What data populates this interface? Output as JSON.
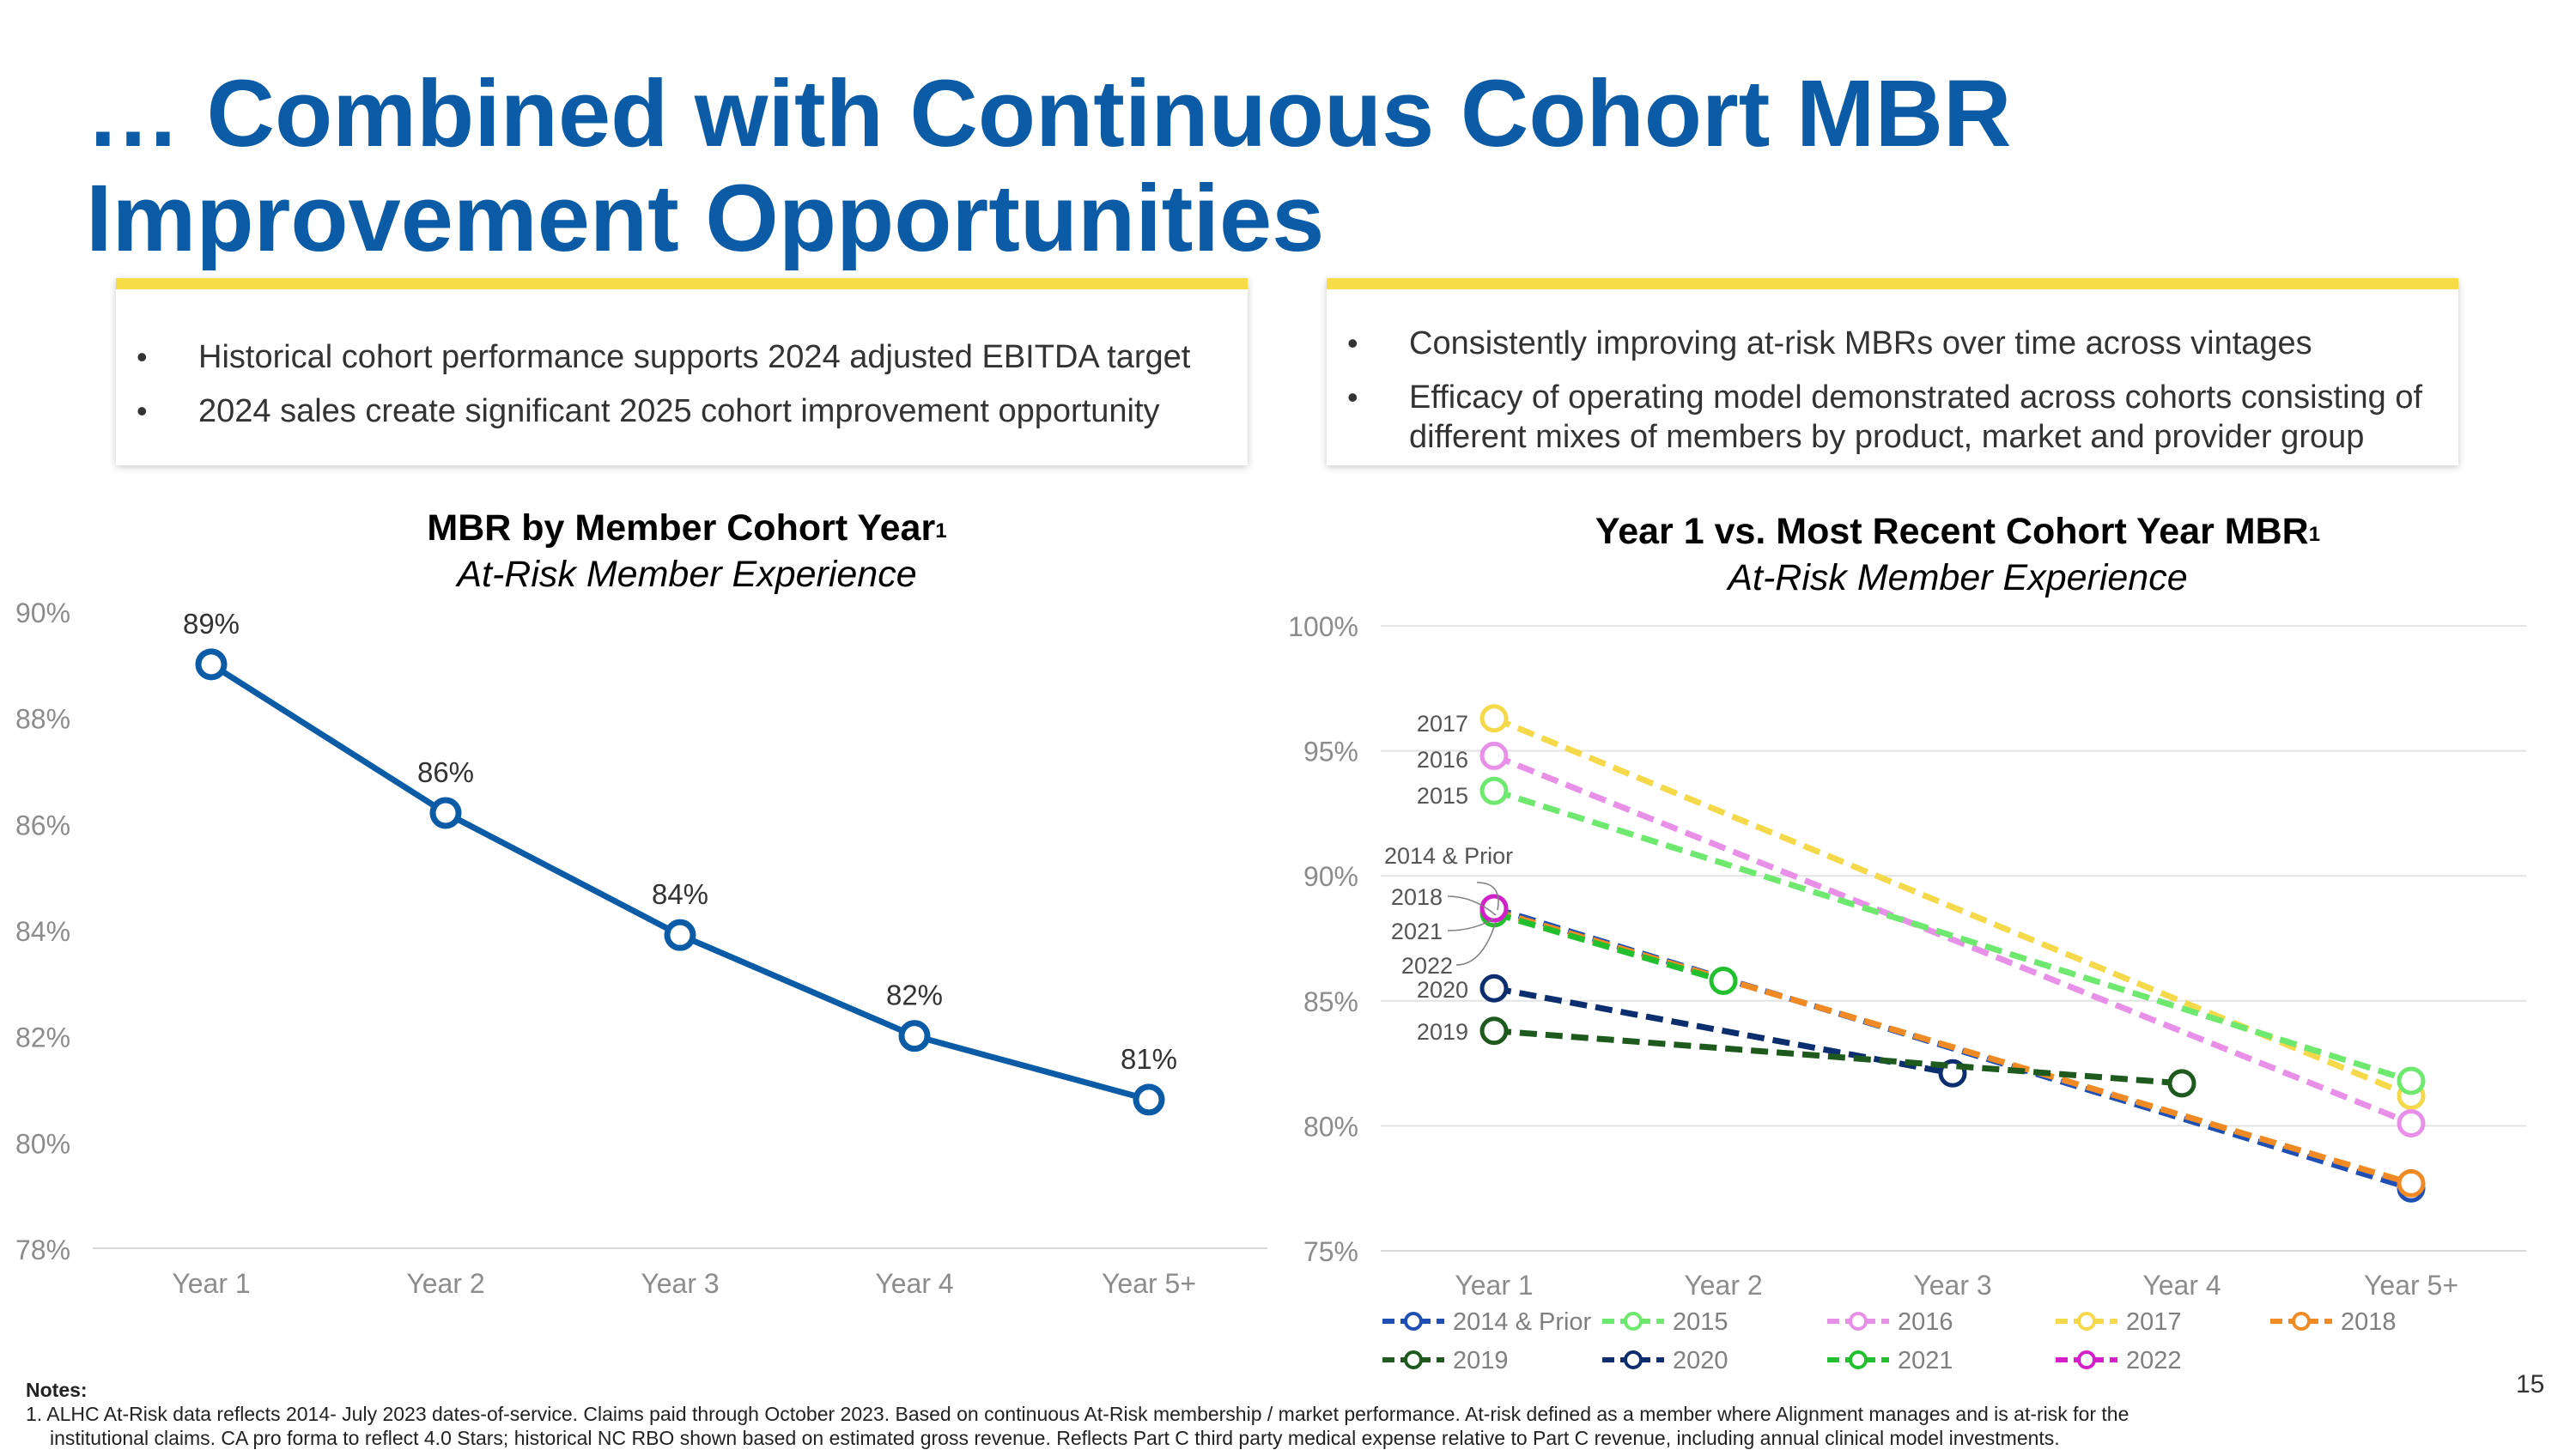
{
  "slide_title": "… Combined with Continuous Cohort MBR Improvement Opportunities",
  "left_box": {
    "bullet": "•",
    "bullets": [
      "Historical cohort performance supports 2024 adjusted EBITDA target",
      "2024 sales create significant 2025 cohort improvement opportunity"
    ]
  },
  "right_box": {
    "bullet": "•",
    "bullets": [
      "Consistently improving at-risk MBRs over time across vintages",
      "Efficacy of operating model demonstrated across cohorts consisting of different mixes of members by product, market and provider group"
    ]
  },
  "chart_data": [
    {
      "type": "line",
      "title": "MBR by Member Cohort Year",
      "title_footnote": "1",
      "subtitle": "At-Risk Member Experience",
      "categories": [
        "Year 1",
        "Year 2",
        "Year 3",
        "Year 4",
        "Year 5+"
      ],
      "series": [
        {
          "name": "MBR",
          "values": [
            89.0,
            86.2,
            83.9,
            82.0,
            80.8
          ],
          "color": "#0B5BA6"
        }
      ],
      "data_labels": [
        "89%",
        "86%",
        "84%",
        "82%",
        "81%"
      ],
      "ylim": [
        78,
        90
      ],
      "yticks": [
        78,
        80,
        82,
        84,
        86,
        88,
        90
      ],
      "ytick_labels": [
        "78%",
        "80%",
        "82%",
        "84%",
        "86%",
        "88%",
        "90%"
      ],
      "grid": false
    },
    {
      "type": "line",
      "title": "Year 1 vs. Most Recent Cohort Year MBR",
      "title_footnote": "1",
      "subtitle": "At-Risk Member Experience",
      "categories": [
        "Year 1",
        "Year 2",
        "Year 3",
        "Year 4",
        "Year 5+"
      ],
      "ylim": [
        75,
        100
      ],
      "yticks": [
        75,
        80,
        85,
        90,
        95,
        100
      ],
      "ytick_labels": [
        "75%",
        "80%",
        "85%",
        "90%",
        "95%",
        "100%"
      ],
      "grid": true,
      "legend_position": "bottom",
      "series": [
        {
          "name": "2014 & Prior",
          "color": "#1F4FB4",
          "points": [
            [
              1,
              88.7
            ],
            [
              5,
              77.5
            ]
          ]
        },
        {
          "name": "2015",
          "color": "#6EE86E",
          "points": [
            [
              1,
              93.4
            ],
            [
              5,
              81.8
            ]
          ]
        },
        {
          "name": "2016",
          "color": "#E88FE8",
          "points": [
            [
              1,
              94.8
            ],
            [
              5,
              80.1
            ]
          ]
        },
        {
          "name": "2017",
          "color": "#F5D94A",
          "points": [
            [
              1,
              96.3
            ],
            [
              5,
              81.2
            ]
          ]
        },
        {
          "name": "2018",
          "color": "#F08A24",
          "points": [
            [
              1,
              88.6
            ],
            [
              5,
              77.7
            ]
          ]
        },
        {
          "name": "2019",
          "color": "#1E5A1E",
          "points": [
            [
              1,
              83.8
            ],
            [
              4,
              81.7
            ]
          ]
        },
        {
          "name": "2020",
          "color": "#0C2E6E",
          "points": [
            [
              1,
              85.5
            ],
            [
              3,
              82.1
            ]
          ]
        },
        {
          "name": "2021",
          "color": "#22C02E",
          "points": [
            [
              1,
              88.5
            ],
            [
              2,
              85.8
            ]
          ]
        },
        {
          "name": "2022",
          "color": "#D420C8",
          "points": [
            [
              1,
              88.7
            ]
          ]
        }
      ],
      "annotations": [
        "2017",
        "2016",
        "2015",
        "2014 & Prior",
        "2018",
        "2021",
        "2022",
        "2020",
        "2019"
      ]
    }
  ],
  "notes": {
    "heading": "Notes:",
    "line1": "1. ALHC At-Risk data reflects 2014- July 2023 dates-of-service. Claims paid through October 2023. Based on continuous At-Risk membership / market performance. At-risk defined as a member where Alignment manages and is at-risk for the",
    "line2": "institutional claims.  CA pro forma to reflect 4.0 Stars; historical NC RBO shown based on estimated gross revenue. Reflects Part C third party medical expense relative to Part C revenue, including annual clinical model investments."
  },
  "page_number": "15"
}
